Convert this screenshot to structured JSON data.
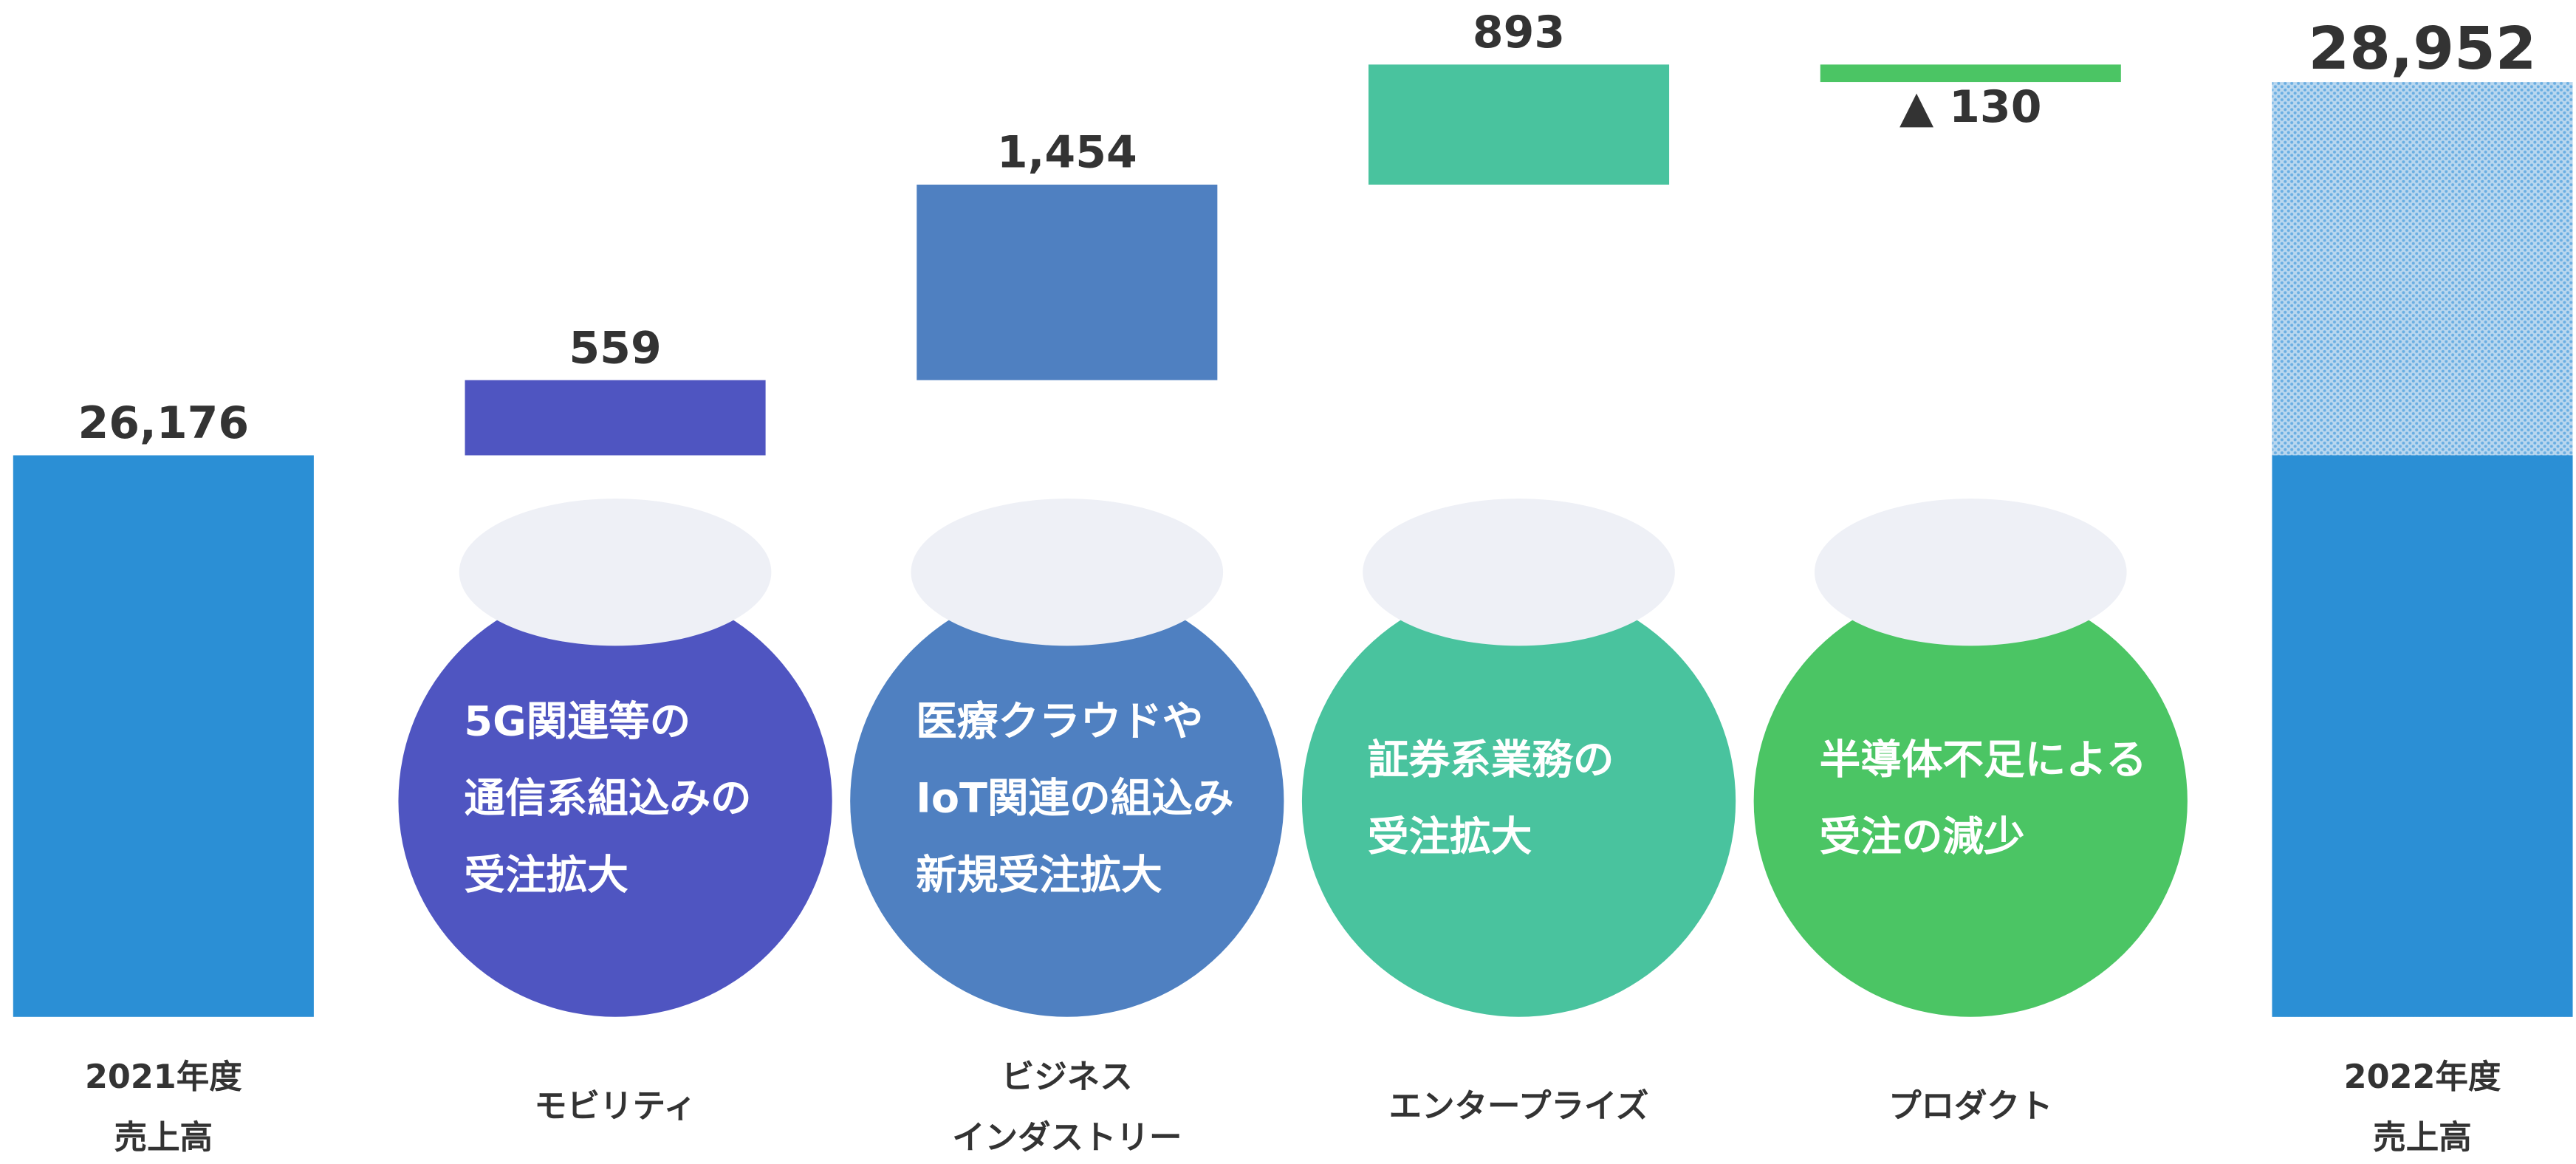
{
  "chart_data": {
    "type": "waterfall",
    "categories": [
      [
        "2021年度",
        "売上高"
      ],
      [
        "モビリティ"
      ],
      [
        "ビジネス",
        "インダストリー"
      ],
      [
        "エンタープライズ"
      ],
      [
        "プロダクト"
      ],
      [
        "2022年度",
        "売上高"
      ]
    ],
    "values": [
      26176,
      559,
      1454,
      893,
      -130,
      28952
    ],
    "value_labels": [
      "26,176",
      "559",
      "1,454",
      "893",
      "▲ 130",
      "28,952"
    ],
    "is_total": [
      true,
      false,
      false,
      false,
      false,
      true
    ],
    "colors": [
      "#2b8fd5",
      "#4f55c1",
      "#4f80c1",
      "#49c39e",
      "#4bc564",
      "#2b8fd5"
    ],
    "annotations": [
      [
        "5G関連等の",
        "通信系組込みの",
        "受注拡大"
      ],
      [
        "医療クラウドや",
        "IoT関連の組込み",
        "新規受注拡大"
      ],
      [
        "証券系業務の",
        "受注拡大"
      ],
      [
        "半導体不足による",
        "受注の減少"
      ]
    ],
    "ylim": [
      22000,
      29100
    ]
  }
}
